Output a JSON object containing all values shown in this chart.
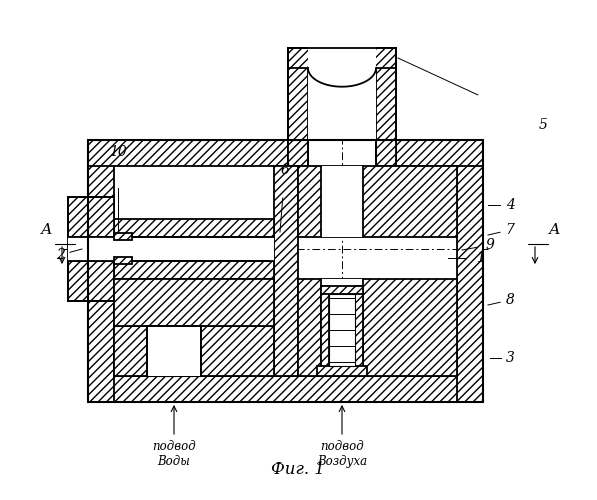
{
  "title": "Фиг. 1",
  "bg_color": "#ffffff",
  "line_color": "#000000",
  "hatch": "////",
  "lw_main": 1.3,
  "lw_thin": 0.8,
  "OX": 85,
  "OY": 100,
  "OW": 400,
  "OH": 265,
  "TW": 25,
  "NX_rel": 195,
  "NW": 115,
  "NH": 95,
  "NTW": 22,
  "ax_label": "А",
  "water_label": "подвод\nВоды",
  "air_label": "подвод\nВоздуха",
  "fig_label": "Фиг. 1"
}
